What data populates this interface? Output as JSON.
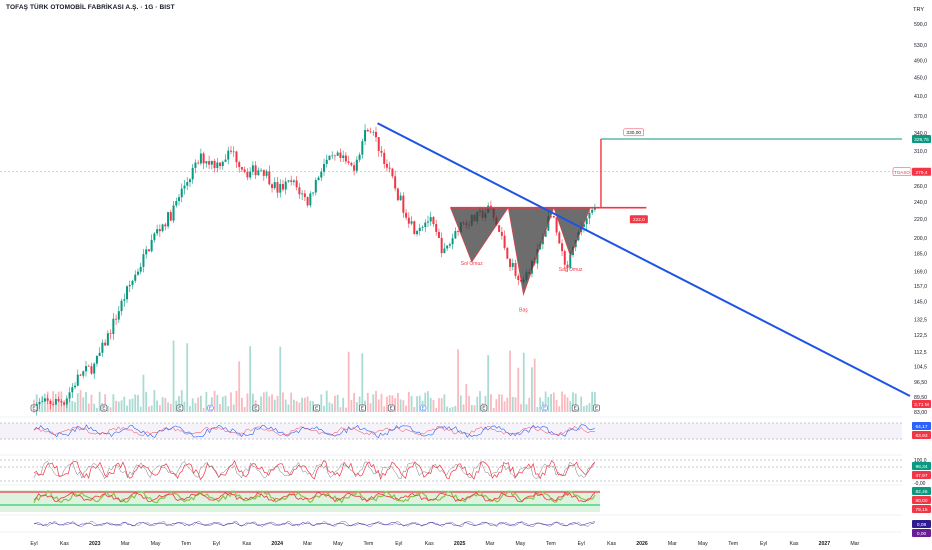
{
  "header": {
    "title": "TOFAŞ TÜRK OTOMOBİL FABRİKASI A.Ş. · 1G · BIST",
    "currency": "TRY"
  },
  "chart_data": {
    "type": "candlestick",
    "price_axis": {
      "ticks": [
        "590,0",
        "530,0",
        "490,0",
        "450,0",
        "410,0",
        "370,0",
        "340,0",
        "310,0",
        "280,0",
        "260,0",
        "240,0",
        "220,0",
        "200,0",
        "185,0",
        "169,0",
        "157,0",
        "145,0",
        "132,5",
        "122,5",
        "112,5",
        "104,5",
        "96,50",
        "89,50",
        "83,00"
      ],
      "scale": "log",
      "range": [
        83,
        620
      ],
      "badges": [
        {
          "text": "329,75",
          "value": 329.75,
          "color": "#089981",
          "kind": "target"
        },
        {
          "text": "279,4",
          "value": 279.4,
          "color": "#f23645",
          "kind": "last",
          "symbol": "TOASO"
        },
        {
          "text": "3,71 M",
          "value": 85.5,
          "color": "#f23645",
          "kind": "volume"
        }
      ]
    },
    "time_axis": [
      "Eyl",
      "Kas",
      "2023",
      "Mar",
      "May",
      "Tem",
      "Eyl",
      "Kas",
      "2024",
      "Mar",
      "May",
      "Tem",
      "Eyl",
      "Kas",
      "2025",
      "Mar",
      "May",
      "Tem",
      "Eyl",
      "Kas",
      "2026",
      "Mar",
      "May",
      "Tem",
      "Eyl",
      "Kas",
      "2027",
      "Mar"
    ],
    "pattern": {
      "name": "Inverse head and shoulders",
      "labels": [
        {
          "text": "Sol Omuz",
          "price": 177
        },
        {
          "text": "Baş",
          "price": 140
        },
        {
          "text": "Sağ Omuz",
          "price": 172
        }
      ],
      "neckline_price": 233,
      "box_labels": [
        {
          "text": "330,00",
          "price": 330
        },
        {
          "text": "222,0",
          "price": 222
        }
      ]
    },
    "trendline": {
      "from_price": 357,
      "to_price": 90,
      "color": "#1e53e5"
    },
    "target_line": {
      "price": 329.75,
      "color": "#089981"
    },
    "events_marker": "E",
    "indicators": [
      {
        "name": "RSI",
        "badges": [
          {
            "text": "64,17",
            "color": "#2962ff"
          },
          {
            "text": "63,93",
            "color": "#f23645"
          }
        ]
      },
      {
        "name": "Stoch",
        "ticks": [
          "100,0",
          "25,00",
          "-0,00"
        ],
        "badges": [
          {
            "text": "98,34",
            "color": "#089981"
          },
          {
            "text": "47,97",
            "color": "#f23645"
          }
        ]
      },
      {
        "name": "Oscillator",
        "badges": [
          {
            "text": "82,46",
            "color": "#089981"
          },
          {
            "text": "80,00",
            "color": "#f23645"
          },
          {
            "text": "79,15",
            "color": "#f23645"
          }
        ]
      },
      {
        "name": "Momentum",
        "badges": [
          {
            "text": "0,08",
            "color": "#311b92"
          },
          {
            "text": "0,00",
            "color": "#6a1b9a"
          }
        ]
      }
    ],
    "grid": false,
    "legend": "none"
  }
}
